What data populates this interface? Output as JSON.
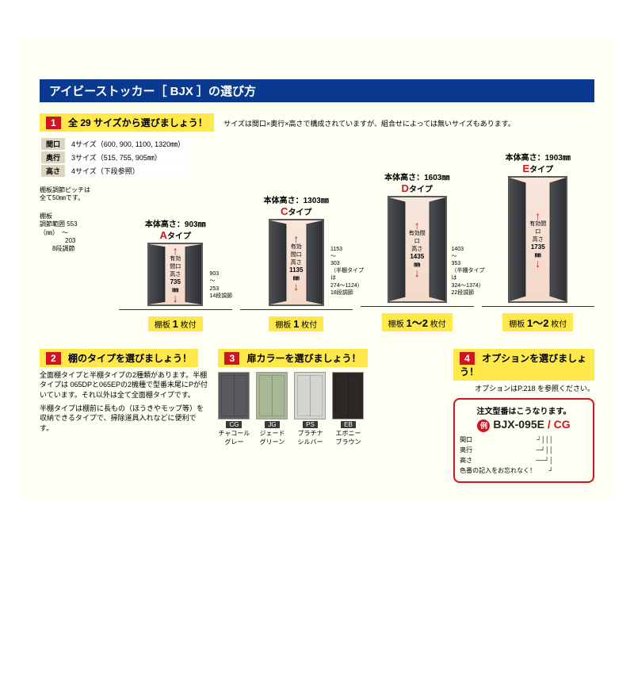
{
  "title": "アイビーストッカー［ BJX ］の選び方",
  "step1": {
    "num": "1",
    "heading": "全 29 サイズから選びましょう！",
    "note": "サイズは間口×奥行×高さで構成されていますが、組合せによっては無いサイズもあります。",
    "dimRows": [
      {
        "label": "間口",
        "value": "4サイズ（600, 900, 1100, 1320㎜）"
      },
      {
        "label": "奥行",
        "value": "3サイズ（515, 755, 905㎜）"
      },
      {
        "label": "高さ",
        "value": "4サイズ（下段参照）"
      }
    ],
    "pitchNote": "棚板調節ピッチは\n全て50㎜です。",
    "shelfRange": {
      "t1": "棚板",
      "t2": "調節範囲",
      "t3": "（㎜）",
      "r1": "553",
      "tilde": "〜",
      "r2": "203",
      "r3": "8段調節"
    }
  },
  "types": [
    {
      "letter": "A",
      "height": "903",
      "opening": "735",
      "shelves": "1 枚付",
      "side": "",
      "cabH": 80,
      "cabW": 70
    },
    {
      "letter": "C",
      "height": "1303",
      "opening": "1135",
      "shelves": "1 枚付",
      "side": "903\n〜\n253\n14段調節",
      "cabH": 110,
      "cabW": 70
    },
    {
      "letter": "D",
      "height": "1603",
      "opening": "1435",
      "shelves": "1〜2 枚付",
      "side": "1153\n〜\n303\n（半棚タイプは\n274〜1124）\n18段調節",
      "cabH": 135,
      "cabW": 75
    },
    {
      "letter": "E",
      "height": "1903",
      "opening": "1735",
      "shelves": "1〜2 枚付",
      "side": "1403\n〜\n353\n（半棚タイプは\n324〜1374）\n22段調節",
      "cabH": 160,
      "cabW": 75
    }
  ],
  "labels": {
    "bodyHeight": "本体高さ：",
    "typeSuffix": "タイプ",
    "openingLabel": "有効間口\n高さ",
    "shelfPrefix": "棚板 "
  },
  "step2": {
    "num": "2",
    "heading": "棚のタイプを選びましょう！",
    "text1": "全面棚タイプと半棚タイプの2種類があります。半棚タイプは 065DPと065EPの2機種で型番末尾にPが付いています。それ以外は全て全面棚タイプです。",
    "text2": "半棚タイプは棚前に長もの（ほうきやモップ等）を収納できるタイプで、掃除道具入れなどに便利です。"
  },
  "step3": {
    "num": "3",
    "heading": "扉カラーを選びましょう！",
    "colors": [
      {
        "code": "CG",
        "name": "チャコール\nグレー",
        "bg": "#585a5d"
      },
      {
        "code": "JG",
        "name": "ジェード\nグリーン",
        "bg": "#a8b896"
      },
      {
        "code": "PS",
        "name": "プラチナ\nシルバー",
        "bg": "#d4d4d0"
      },
      {
        "code": "EB",
        "name": "エボニー\nブラウン",
        "bg": "#2d2825"
      }
    ]
  },
  "step4": {
    "num": "4",
    "heading": "オプションを選びましょう！",
    "note": "オプションはP.218 を参照ください。",
    "orderTitle": "注文型番はこうなります。",
    "exLabel": "例",
    "codeP1": "BJX-095E",
    "codeP2": " / CG",
    "lines": [
      "間口",
      "奥行",
      "高さ"
    ],
    "colorNote": "色番の記入をお忘れなく！"
  }
}
